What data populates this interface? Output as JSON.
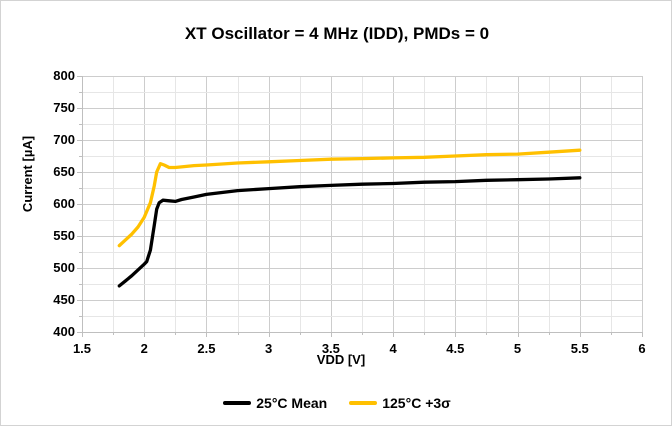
{
  "chart_data": {
    "type": "line",
    "title": "XT Oscillator = 4 MHz (IDD), PMDs = 0",
    "xlabel": "VDD [V]",
    "ylabel": "Current [µA]",
    "xlim": [
      1.5,
      6
    ],
    "ylim": [
      400,
      800
    ],
    "x_tick_values": [
      1.5,
      2,
      2.5,
      3,
      3.5,
      4,
      4.5,
      5,
      5.5,
      6
    ],
    "x_tick_labels": [
      "1.5",
      "2",
      "2.5",
      "3",
      "3.5",
      "4",
      "4.5",
      "5",
      "5.5",
      "6"
    ],
    "x_minor_step": 0.25,
    "y_tick_values": [
      400,
      450,
      500,
      550,
      600,
      650,
      700,
      750,
      800
    ],
    "y_tick_labels": [
      "400",
      "450",
      "500",
      "550",
      "600",
      "650",
      "700",
      "750",
      "800"
    ],
    "y_minor_step": 25,
    "grid": "major and minor gridlines on, light gray",
    "legend_position": "bottom-center",
    "series": [
      {
        "name": "25°C Mean",
        "color": "#000000",
        "points": [
          [
            1.8,
            472
          ],
          [
            1.85,
            480
          ],
          [
            1.9,
            488
          ],
          [
            1.95,
            497
          ],
          [
            2.0,
            506
          ],
          [
            2.02,
            510
          ],
          [
            2.05,
            528
          ],
          [
            2.08,
            566
          ],
          [
            2.1,
            592
          ],
          [
            2.12,
            602
          ],
          [
            2.15,
            606
          ],
          [
            2.2,
            605
          ],
          [
            2.25,
            604
          ],
          [
            2.3,
            607
          ],
          [
            2.4,
            611
          ],
          [
            2.5,
            615
          ],
          [
            2.75,
            621
          ],
          [
            3.0,
            624
          ],
          [
            3.25,
            627
          ],
          [
            3.5,
            629
          ],
          [
            3.75,
            631
          ],
          [
            4.0,
            632
          ],
          [
            4.25,
            634
          ],
          [
            4.5,
            635
          ],
          [
            4.75,
            637
          ],
          [
            5.0,
            638
          ],
          [
            5.25,
            639
          ],
          [
            5.5,
            641
          ]
        ]
      },
      {
        "name": "125°C +3σ",
        "color": "#FFC000",
        "points": [
          [
            1.8,
            535
          ],
          [
            1.85,
            544
          ],
          [
            1.9,
            553
          ],
          [
            1.95,
            564
          ],
          [
            2.0,
            579
          ],
          [
            2.05,
            602
          ],
          [
            2.08,
            628
          ],
          [
            2.1,
            650
          ],
          [
            2.13,
            663
          ],
          [
            2.16,
            661
          ],
          [
            2.2,
            657
          ],
          [
            2.25,
            657
          ],
          [
            2.3,
            658
          ],
          [
            2.4,
            660
          ],
          [
            2.5,
            661
          ],
          [
            2.75,
            664
          ],
          [
            3.0,
            666
          ],
          [
            3.25,
            668
          ],
          [
            3.5,
            670
          ],
          [
            3.75,
            671
          ],
          [
            4.0,
            672
          ],
          [
            4.25,
            673
          ],
          [
            4.5,
            675
          ],
          [
            4.75,
            677
          ],
          [
            5.0,
            678
          ],
          [
            5.25,
            681
          ],
          [
            5.5,
            684
          ]
        ]
      }
    ]
  },
  "colors": {
    "background": "#FFFFFF",
    "outer_border": "#D3D3D3",
    "major_gridline": "#CDCDCD",
    "minor_gridline": "#E6E6E6",
    "axis_line": "#BFBFBF",
    "text": "#000000"
  }
}
